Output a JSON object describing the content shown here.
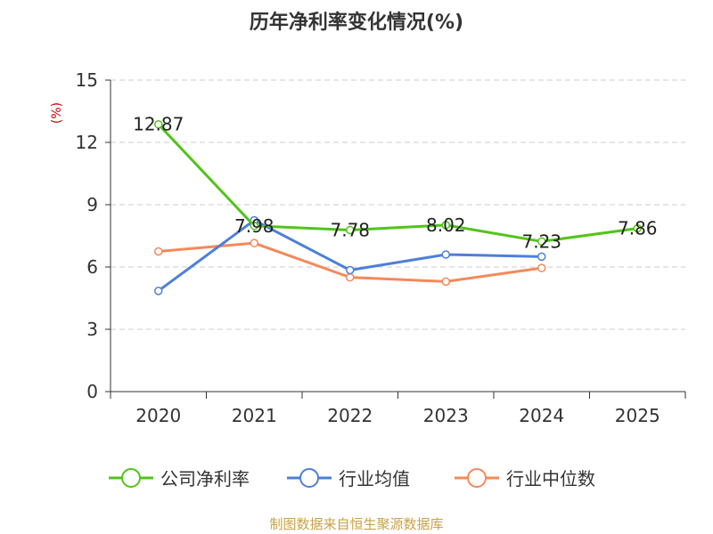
{
  "chart_data": {
    "type": "line",
    "title": "历年净利率变化情况(%)",
    "ylabel": "(%)",
    "xlabel": "",
    "categories": [
      "2020",
      "2021",
      "2022",
      "2023",
      "2024",
      "2025"
    ],
    "ylim": [
      0,
      15
    ],
    "yticks": [
      0,
      3,
      6,
      9,
      12,
      15
    ],
    "grid": true,
    "legend_position": "bottom",
    "series": [
      {
        "name": "公司净利率",
        "color": "#52c41a",
        "values": [
          12.87,
          7.98,
          7.78,
          8.02,
          7.23,
          7.86
        ],
        "labels": [
          "12.87",
          "7.98",
          "7.78",
          "8.02",
          "7.23",
          "7.86"
        ]
      },
      {
        "name": "行业均值",
        "color": "#4e7fd9",
        "values": [
          4.85,
          8.25,
          5.85,
          6.6,
          6.5,
          null
        ]
      },
      {
        "name": "行业中位数",
        "color": "#f4895a",
        "values": [
          6.75,
          7.15,
          5.5,
          5.3,
          5.95,
          null
        ]
      }
    ]
  },
  "colors": {
    "ylabel": "#cc0000",
    "source": "#c8a24a",
    "grid": "#cccccc",
    "axis": "#333333"
  },
  "source": "制图数据来自恒生聚源数据库"
}
